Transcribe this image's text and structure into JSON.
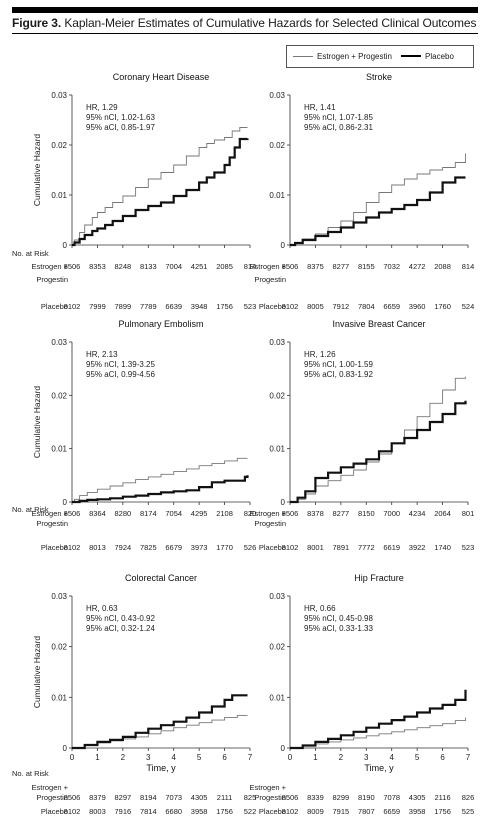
{
  "figure": {
    "label": "Figure 3.",
    "title": "Kaplan-Meier Estimates of Cumulative Hazards for Selected Clinical Outcomes"
  },
  "legend": {
    "entries": [
      {
        "name": "Estrogen + Progestin",
        "color": "#777777",
        "style": "thin"
      },
      {
        "name": "Placebo",
        "color": "#000000",
        "style": "thick"
      }
    ]
  },
  "colors": {
    "ep": "#777777",
    "placebo": "#111111",
    "axis": "#333333"
  },
  "common": {
    "ylabel": "Cumulative Hazard",
    "xlabel": "Time, y",
    "risk_heading": "No. at Risk",
    "row_label_ep": [
      "Estrogen +",
      "Progestin"
    ],
    "row_label_placebo": "Placebo",
    "x_ticks": [
      0,
      1,
      2,
      3,
      4,
      5,
      6,
      7
    ],
    "y_ticks": [
      "0",
      "0.01",
      "0.02",
      "0.03"
    ]
  },
  "chart_data": [
    {
      "type": "line",
      "title": "Coronary Heart Disease",
      "xlim": [
        0,
        7
      ],
      "ylim": [
        0,
        0.03
      ],
      "stats": [
        "HR, 1.29",
        "95% nCI, 1.02-1.63",
        "95% aCI, 0.85-1.97"
      ],
      "series": [
        {
          "name": "Estrogen + Progestin",
          "x": [
            0,
            0.1,
            0.3,
            0.5,
            0.8,
            1,
            1.3,
            1.6,
            2,
            2.5,
            3,
            3.5,
            4,
            4.5,
            5,
            5.3,
            5.6,
            6,
            6.3,
            6.6,
            6.9
          ],
          "y": [
            0,
            0.001,
            0.0025,
            0.004,
            0.0055,
            0.0065,
            0.0075,
            0.0085,
            0.0098,
            0.0115,
            0.0132,
            0.0145,
            0.016,
            0.0178,
            0.0195,
            0.0203,
            0.021,
            0.0215,
            0.0228,
            0.0235,
            0.0235
          ]
        },
        {
          "name": "Placebo",
          "x": [
            0,
            0.1,
            0.3,
            0.5,
            0.8,
            1,
            1.3,
            1.6,
            2,
            2.5,
            3,
            3.5,
            4,
            4.5,
            5,
            5.3,
            5.6,
            6,
            6.2,
            6.4,
            6.6,
            6.9
          ],
          "y": [
            0,
            0.0005,
            0.0012,
            0.002,
            0.0028,
            0.0033,
            0.004,
            0.0048,
            0.0058,
            0.007,
            0.0078,
            0.0085,
            0.0098,
            0.011,
            0.0125,
            0.0135,
            0.0145,
            0.016,
            0.0175,
            0.0195,
            0.0212,
            0.0213
          ]
        }
      ],
      "risk": {
        "ep": [
          "8506",
          "8353",
          "8248",
          "8133",
          "7004",
          "4251",
          "2085",
          "814"
        ],
        "placebo": [
          "8102",
          "7999",
          "7899",
          "7789",
          "6639",
          "3948",
          "1756",
          "523"
        ]
      }
    },
    {
      "type": "line",
      "title": "Stroke",
      "xlim": [
        0,
        7
      ],
      "ylim": [
        0,
        0.03
      ],
      "stats": [
        "HR, 1.41",
        "95% nCI, 1.07-1.85",
        "95% aCI, 0.86-2.31"
      ],
      "series": [
        {
          "name": "Estrogen + Progestin",
          "x": [
            0,
            0.2,
            0.5,
            1,
            1.5,
            2,
            2.5,
            3,
            3.5,
            4,
            4.5,
            5,
            5.5,
            6,
            6.5,
            6.9
          ],
          "y": [
            0,
            0.0005,
            0.0012,
            0.0022,
            0.0035,
            0.0048,
            0.0065,
            0.0085,
            0.0105,
            0.012,
            0.0132,
            0.0142,
            0.015,
            0.0155,
            0.0165,
            0.0183
          ]
        },
        {
          "name": "Placebo",
          "x": [
            0,
            0.2,
            0.5,
            1,
            1.5,
            2,
            2.5,
            3,
            3.5,
            4,
            4.5,
            5,
            5.5,
            6,
            6.5,
            6.9
          ],
          "y": [
            0,
            0.0004,
            0.001,
            0.0018,
            0.0026,
            0.0035,
            0.0045,
            0.0055,
            0.0065,
            0.0072,
            0.008,
            0.009,
            0.0105,
            0.0125,
            0.0135,
            0.0135
          ]
        }
      ],
      "risk": {
        "ep": [
          "8506",
          "8375",
          "8277",
          "8155",
          "7032",
          "4272",
          "2088",
          "814"
        ],
        "placebo": [
          "8102",
          "8005",
          "7912",
          "7804",
          "6659",
          "3960",
          "1760",
          "524"
        ]
      }
    },
    {
      "type": "line",
      "title": "Pulmonary Embolism",
      "xlim": [
        0,
        7
      ],
      "ylim": [
        0,
        0.03
      ],
      "stats": [
        "HR, 2.13",
        "95% nCI, 1.39-3.25",
        "95% aCI, 0.99-4.56"
      ],
      "series": [
        {
          "name": "Estrogen + Progestin",
          "x": [
            0,
            0.1,
            0.3,
            0.6,
            1,
            1.5,
            2,
            2.5,
            3,
            3.5,
            4,
            4.5,
            5,
            5.5,
            6,
            6.5,
            6.9
          ],
          "y": [
            0,
            0.0005,
            0.0012,
            0.0018,
            0.0024,
            0.003,
            0.0036,
            0.0042,
            0.0047,
            0.0052,
            0.0057,
            0.0062,
            0.0068,
            0.0072,
            0.0077,
            0.0082,
            0.0082
          ]
        },
        {
          "name": "Placebo",
          "x": [
            0,
            0.3,
            0.6,
            1,
            1.5,
            2,
            2.5,
            3,
            3.5,
            4,
            4.5,
            5,
            5.5,
            6,
            6.5,
            6.8,
            6.9
          ],
          "y": [
            0,
            0.0002,
            0.0004,
            0.0005,
            0.0007,
            0.001,
            0.0012,
            0.0015,
            0.0018,
            0.002,
            0.0022,
            0.0028,
            0.0037,
            0.004,
            0.004,
            0.0047,
            0.005
          ]
        }
      ],
      "risk": {
        "ep": [
          "8506",
          "8364",
          "8280",
          "8174",
          "7054",
          "4295",
          "2108",
          "820"
        ],
        "placebo": [
          "8102",
          "8013",
          "7924",
          "7825",
          "6679",
          "3973",
          "1770",
          "526"
        ]
      }
    },
    {
      "type": "line",
      "title": "Invasive Breast Cancer",
      "xlim": [
        0,
        7
      ],
      "ylim": [
        0,
        0.03
      ],
      "stats": [
        "HR, 1.26",
        "95% nCI, 1.00-1.59",
        "95% aCI, 0.83-1.92"
      ],
      "series": [
        {
          "name": "Estrogen + Progestin",
          "x": [
            0,
            0.3,
            0.6,
            1,
            1.5,
            2,
            2.5,
            3,
            3.5,
            4,
            4.5,
            5,
            5.5,
            6,
            6.5,
            6.9
          ],
          "y": [
            0,
            0.0005,
            0.0015,
            0.003,
            0.004,
            0.005,
            0.006,
            0.0075,
            0.009,
            0.011,
            0.0135,
            0.016,
            0.0185,
            0.021,
            0.0232,
            0.0235
          ]
        },
        {
          "name": "Placebo",
          "x": [
            0,
            0.3,
            0.6,
            1,
            1.5,
            2,
            2.5,
            3,
            3.5,
            4,
            4.5,
            5,
            5.5,
            6,
            6.5,
            6.9
          ],
          "y": [
            0,
            0.0008,
            0.002,
            0.0045,
            0.0055,
            0.0065,
            0.0072,
            0.008,
            0.0095,
            0.011,
            0.012,
            0.0135,
            0.015,
            0.0165,
            0.0185,
            0.019
          ]
        }
      ],
      "risk": {
        "ep": [
          "8506",
          "8378",
          "8277",
          "8150",
          "7000",
          "4234",
          "2064",
          "801"
        ],
        "placebo": [
          "8102",
          "8001",
          "7891",
          "7772",
          "6619",
          "3922",
          "1740",
          "523"
        ]
      }
    },
    {
      "type": "line",
      "title": "Colorectal Cancer",
      "xlim": [
        0,
        7
      ],
      "ylim": [
        0,
        0.03
      ],
      "stats": [
        "HR, 0.63",
        "95% nCI, 0.43-0.92",
        "95% aCI, 0.32-1.24"
      ],
      "series": [
        {
          "name": "Estrogen + Progestin",
          "x": [
            0,
            0.5,
            1,
            1.5,
            2,
            2.5,
            3,
            3.5,
            4,
            4.5,
            5,
            5.5,
            6,
            6.5,
            6.9
          ],
          "y": [
            0,
            0.0005,
            0.001,
            0.0014,
            0.0018,
            0.0022,
            0.0028,
            0.0034,
            0.004,
            0.0045,
            0.005,
            0.0055,
            0.006,
            0.0064,
            0.0064
          ]
        },
        {
          "name": "Placebo",
          "x": [
            0,
            0.5,
            1,
            1.5,
            2,
            2.5,
            3,
            3.5,
            4,
            4.5,
            5,
            5.5,
            6,
            6.3,
            6.9
          ],
          "y": [
            0,
            0.0006,
            0.0012,
            0.0016,
            0.0022,
            0.003,
            0.0038,
            0.0045,
            0.0052,
            0.006,
            0.007,
            0.0082,
            0.0095,
            0.0104,
            0.0104
          ]
        }
      ],
      "risk": {
        "ep": [
          "8506",
          "8379",
          "8297",
          "8194",
          "7073",
          "4305",
          "2111",
          "825"
        ],
        "placebo": [
          "8102",
          "8003",
          "7916",
          "7814",
          "6680",
          "3958",
          "1756",
          "522"
        ]
      }
    },
    {
      "type": "line",
      "title": "Hip Fracture",
      "xlim": [
        0,
        7
      ],
      "ylim": [
        0,
        0.03
      ],
      "stats": [
        "HR, 0.66",
        "95% nCI, 0.45-0.98",
        "95% aCI, 0.33-1.33"
      ],
      "series": [
        {
          "name": "Estrogen + Progestin",
          "x": [
            0,
            0.5,
            1,
            1.5,
            2,
            2.5,
            3,
            3.5,
            4,
            4.5,
            5,
            5.5,
            6,
            6.5,
            6.9
          ],
          "y": [
            0,
            0.0004,
            0.0008,
            0.0012,
            0.0016,
            0.002,
            0.0024,
            0.0028,
            0.0032,
            0.0036,
            0.004,
            0.0044,
            0.0048,
            0.0054,
            0.006
          ]
        },
        {
          "name": "Placebo",
          "x": [
            0,
            0.5,
            1,
            1.5,
            2,
            2.5,
            3,
            3.5,
            4,
            4.5,
            5,
            5.5,
            6,
            6.5,
            6.9
          ],
          "y": [
            0,
            0.0005,
            0.0012,
            0.0018,
            0.0025,
            0.0032,
            0.004,
            0.0048,
            0.0055,
            0.0062,
            0.007,
            0.0078,
            0.0085,
            0.0095,
            0.0115
          ]
        }
      ],
      "risk": {
        "ep": [
          "8506",
          "8339",
          "8299",
          "8190",
          "7078",
          "4305",
          "2116",
          "826"
        ],
        "placebo": [
          "8102",
          "8009",
          "7915",
          "7807",
          "6659",
          "3958",
          "1756",
          "525"
        ]
      }
    }
  ]
}
